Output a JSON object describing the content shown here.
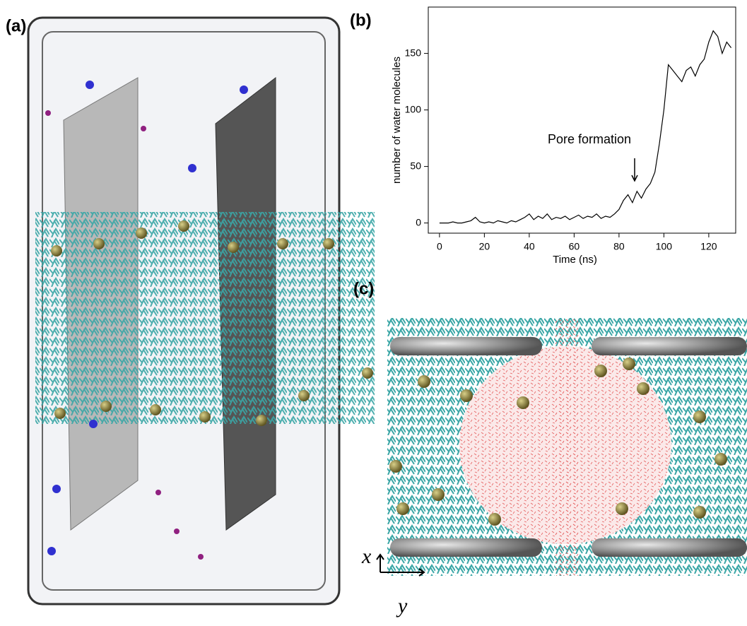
{
  "panels": {
    "a": "(a)",
    "b": "(b)",
    "c": "(c)"
  },
  "chart_data": {
    "type": "line",
    "xlabel": "Time (ns)",
    "ylabel": "number of water molecules",
    "annotation": "Pore formation",
    "x": [
      0,
      2,
      4,
      6,
      8,
      10,
      12,
      14,
      16,
      18,
      20,
      22,
      24,
      26,
      28,
      30,
      32,
      34,
      36,
      38,
      40,
      42,
      44,
      46,
      48,
      50,
      52,
      54,
      56,
      58,
      60,
      62,
      64,
      66,
      68,
      70,
      72,
      74,
      76,
      78,
      80,
      82,
      84,
      86,
      88,
      90,
      92,
      94,
      96,
      98,
      100,
      102,
      104,
      106,
      108,
      110,
      112,
      114,
      116,
      118,
      120,
      122,
      124,
      126,
      128,
      130
    ],
    "series": [
      {
        "color": "#000000",
        "values": [
          0,
          0,
          0,
          1,
          0,
          0,
          1,
          2,
          5,
          1,
          0,
          1,
          0,
          2,
          1,
          0,
          2,
          1,
          3,
          5,
          8,
          3,
          6,
          4,
          8,
          3,
          5,
          4,
          6,
          3,
          5,
          7,
          4,
          6,
          5,
          8,
          4,
          6,
          5,
          8,
          12,
          20,
          25,
          18,
          28,
          22,
          30,
          35,
          45,
          70,
          100,
          140,
          135,
          130,
          125,
          135,
          138,
          130,
          140,
          145,
          160,
          170,
          165,
          150,
          160,
          155
        ]
      }
    ],
    "xlim": [
      -5,
      132
    ],
    "ylim": [
      -9,
      191
    ],
    "xticks": [
      0,
      20,
      40,
      60,
      80,
      100,
      120
    ],
    "yticks": [
      0,
      50,
      100,
      150
    ]
  },
  "axes_c": {
    "x": "x",
    "y": "y"
  }
}
